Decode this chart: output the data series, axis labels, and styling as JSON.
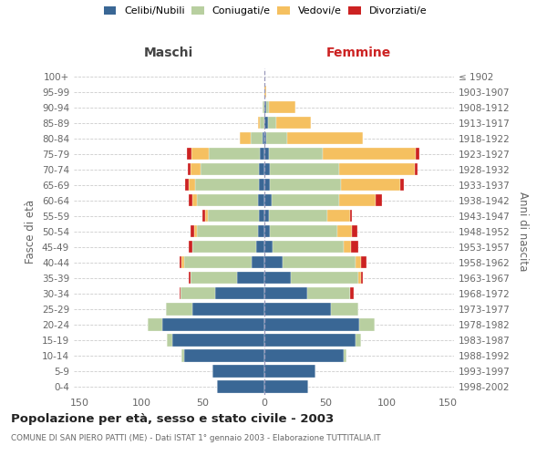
{
  "age_groups": [
    "0-4",
    "5-9",
    "10-14",
    "15-19",
    "20-24",
    "25-29",
    "30-34",
    "35-39",
    "40-44",
    "45-49",
    "50-54",
    "55-59",
    "60-64",
    "65-69",
    "70-74",
    "75-79",
    "80-84",
    "85-89",
    "90-94",
    "95-99",
    "100+"
  ],
  "birth_years": [
    "1998-2002",
    "1993-1997",
    "1988-1992",
    "1983-1987",
    "1978-1982",
    "1973-1977",
    "1968-1972",
    "1963-1967",
    "1958-1962",
    "1953-1957",
    "1948-1952",
    "1943-1947",
    "1938-1942",
    "1933-1937",
    "1928-1932",
    "1923-1927",
    "1918-1922",
    "1913-1917",
    "1908-1912",
    "1903-1907",
    "≤ 1902"
  ],
  "maschi": {
    "celibi": [
      38,
      42,
      65,
      75,
      83,
      58,
      40,
      22,
      10,
      6,
      5,
      4,
      5,
      4,
      4,
      3,
      1,
      0,
      0,
      0,
      0
    ],
    "coniugati": [
      0,
      0,
      2,
      4,
      12,
      22,
      28,
      38,
      55,
      52,
      50,
      42,
      50,
      52,
      48,
      42,
      10,
      3,
      1,
      0,
      0
    ],
    "vedovi": [
      0,
      0,
      0,
      0,
      0,
      0,
      0,
      0,
      2,
      0,
      2,
      2,
      3,
      5,
      8,
      14,
      9,
      2,
      0,
      0,
      0
    ],
    "divorziati": [
      0,
      0,
      0,
      0,
      0,
      0,
      1,
      1,
      2,
      3,
      3,
      2,
      3,
      3,
      2,
      4,
      0,
      0,
      0,
      0,
      0
    ]
  },
  "femmine": {
    "nubili": [
      36,
      42,
      65,
      75,
      78,
      55,
      35,
      22,
      15,
      7,
      5,
      4,
      6,
      5,
      5,
      4,
      2,
      3,
      2,
      0,
      0
    ],
    "coniugate": [
      0,
      0,
      2,
      4,
      12,
      22,
      35,
      55,
      60,
      58,
      55,
      48,
      55,
      58,
      56,
      44,
      17,
      7,
      2,
      0,
      0
    ],
    "vedove": [
      0,
      0,
      0,
      0,
      0,
      0,
      0,
      2,
      4,
      6,
      12,
      18,
      30,
      48,
      62,
      76,
      62,
      28,
      22,
      2,
      0
    ],
    "divorziate": [
      0,
      0,
      0,
      0,
      0,
      0,
      3,
      2,
      5,
      6,
      4,
      2,
      5,
      3,
      2,
      3,
      0,
      0,
      0,
      0,
      0
    ]
  },
  "colors": {
    "celibi": "#3a6795",
    "coniugati": "#b8cfa0",
    "vedovi": "#f5c060",
    "divorziati": "#cc2222"
  },
  "title": "Popolazione per età, sesso e stato civile - 2003",
  "subtitle": "COMUNE DI SAN PIERO PATTI (ME) - Dati ISTAT 1° gennaio 2003 - Elaborazione TUTTITALIA.IT",
  "label_maschi": "Maschi",
  "label_femmine": "Femmine",
  "ylabel_left": "Fasce di età",
  "ylabel_right": "Anni di nascita",
  "legend_labels": [
    "Celibi/Nubili",
    "Coniugati/e",
    "Vedovi/e",
    "Divorziati/e"
  ],
  "xlim": 155,
  "bg_color": "#ffffff",
  "grid_color": "#cccccc",
  "text_color": "#666666",
  "title_color": "#222222",
  "maschi_color": "#444444",
  "femmine_color": "#cc2222"
}
